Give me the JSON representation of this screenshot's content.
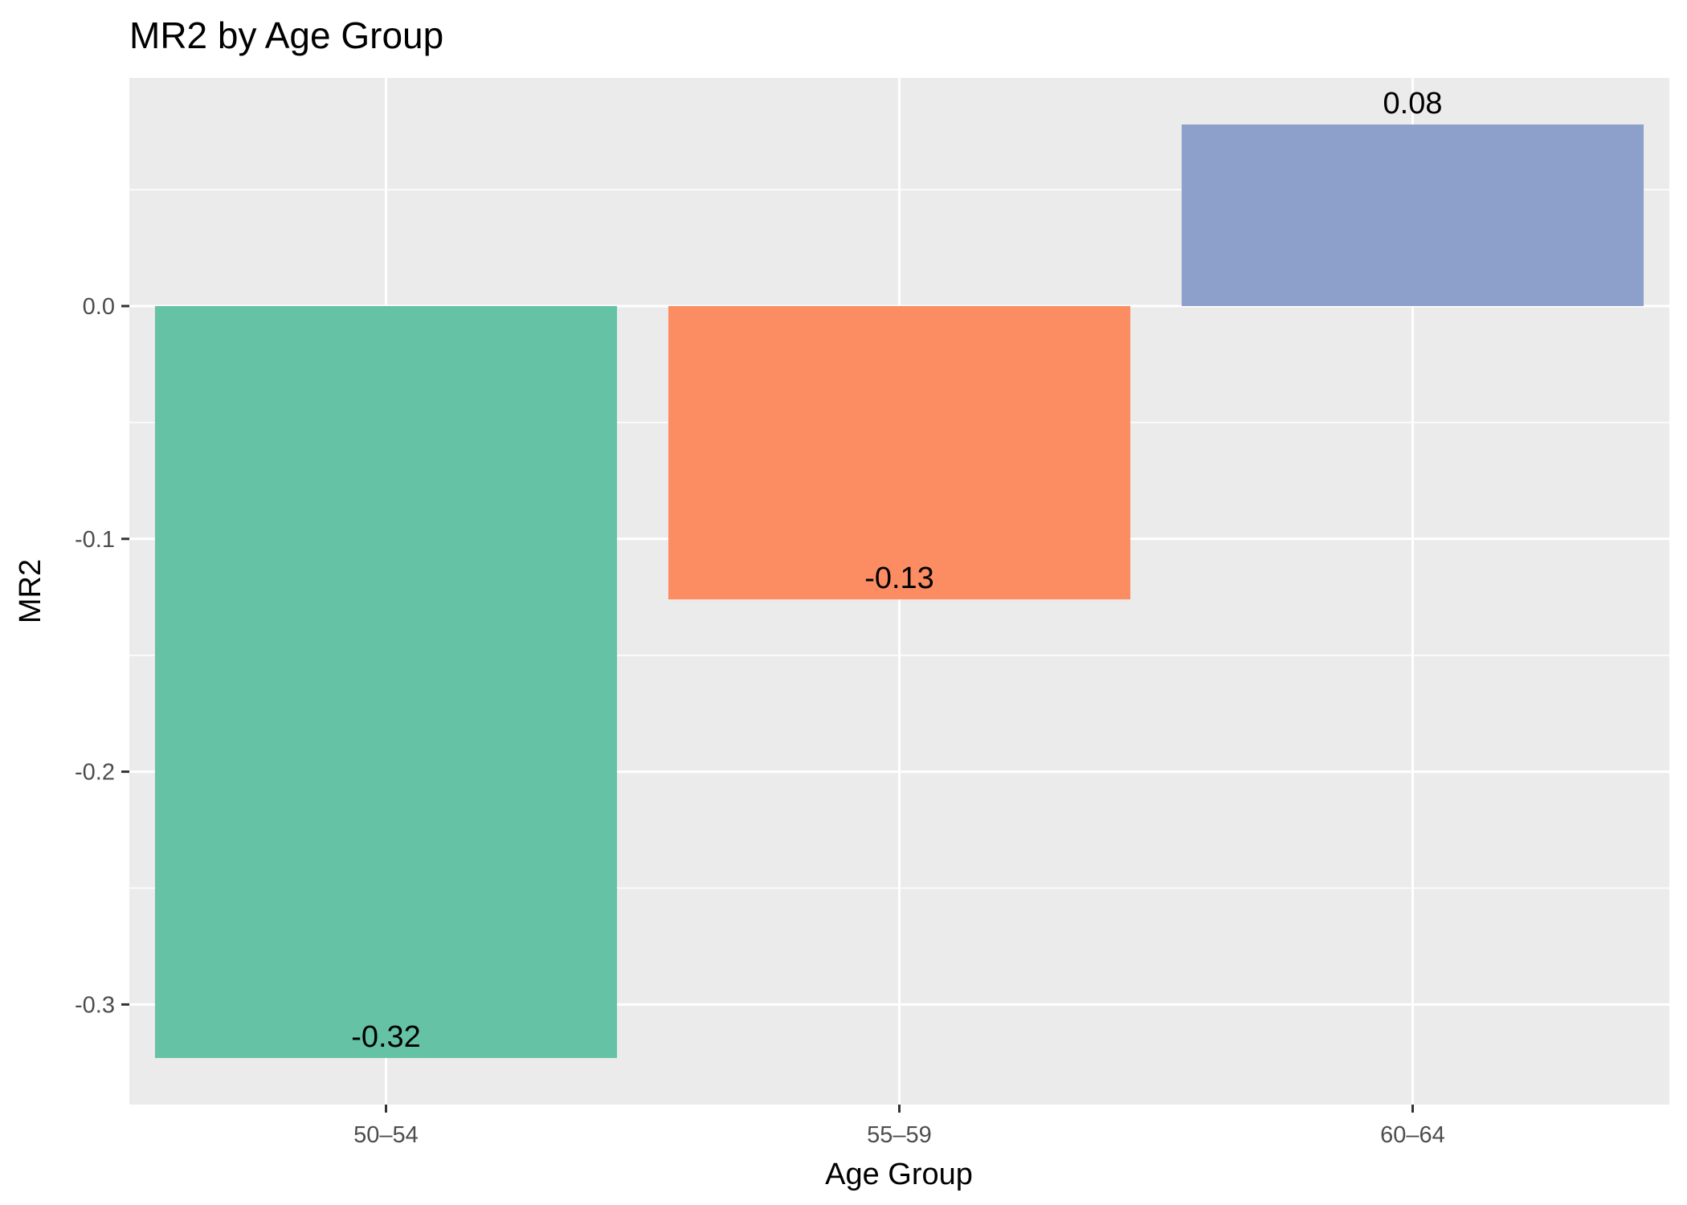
{
  "chart_data": {
    "type": "bar",
    "title": "MR2 by Age Group",
    "xlabel": "Age Group",
    "ylabel": "MR2",
    "categories": [
      "50–54",
      "55–59",
      "60–64"
    ],
    "values": [
      -0.323,
      -0.126,
      0.078
    ],
    "data_labels": [
      "-0.32",
      "-0.13",
      "0.08"
    ],
    "colors": [
      "#66c2a5",
      "#fc8d62",
      "#8da0cb"
    ],
    "yticks": [
      0.0,
      -0.1,
      -0.2,
      -0.3
    ],
    "ytick_labels": [
      "0.0",
      "-0.1",
      "-0.2",
      "-0.3"
    ],
    "ylim": [
      -0.343,
      0.098
    ],
    "grid": true,
    "panel_background": "#ebebeb",
    "grid_color": "#ffffff",
    "legend": "none"
  }
}
